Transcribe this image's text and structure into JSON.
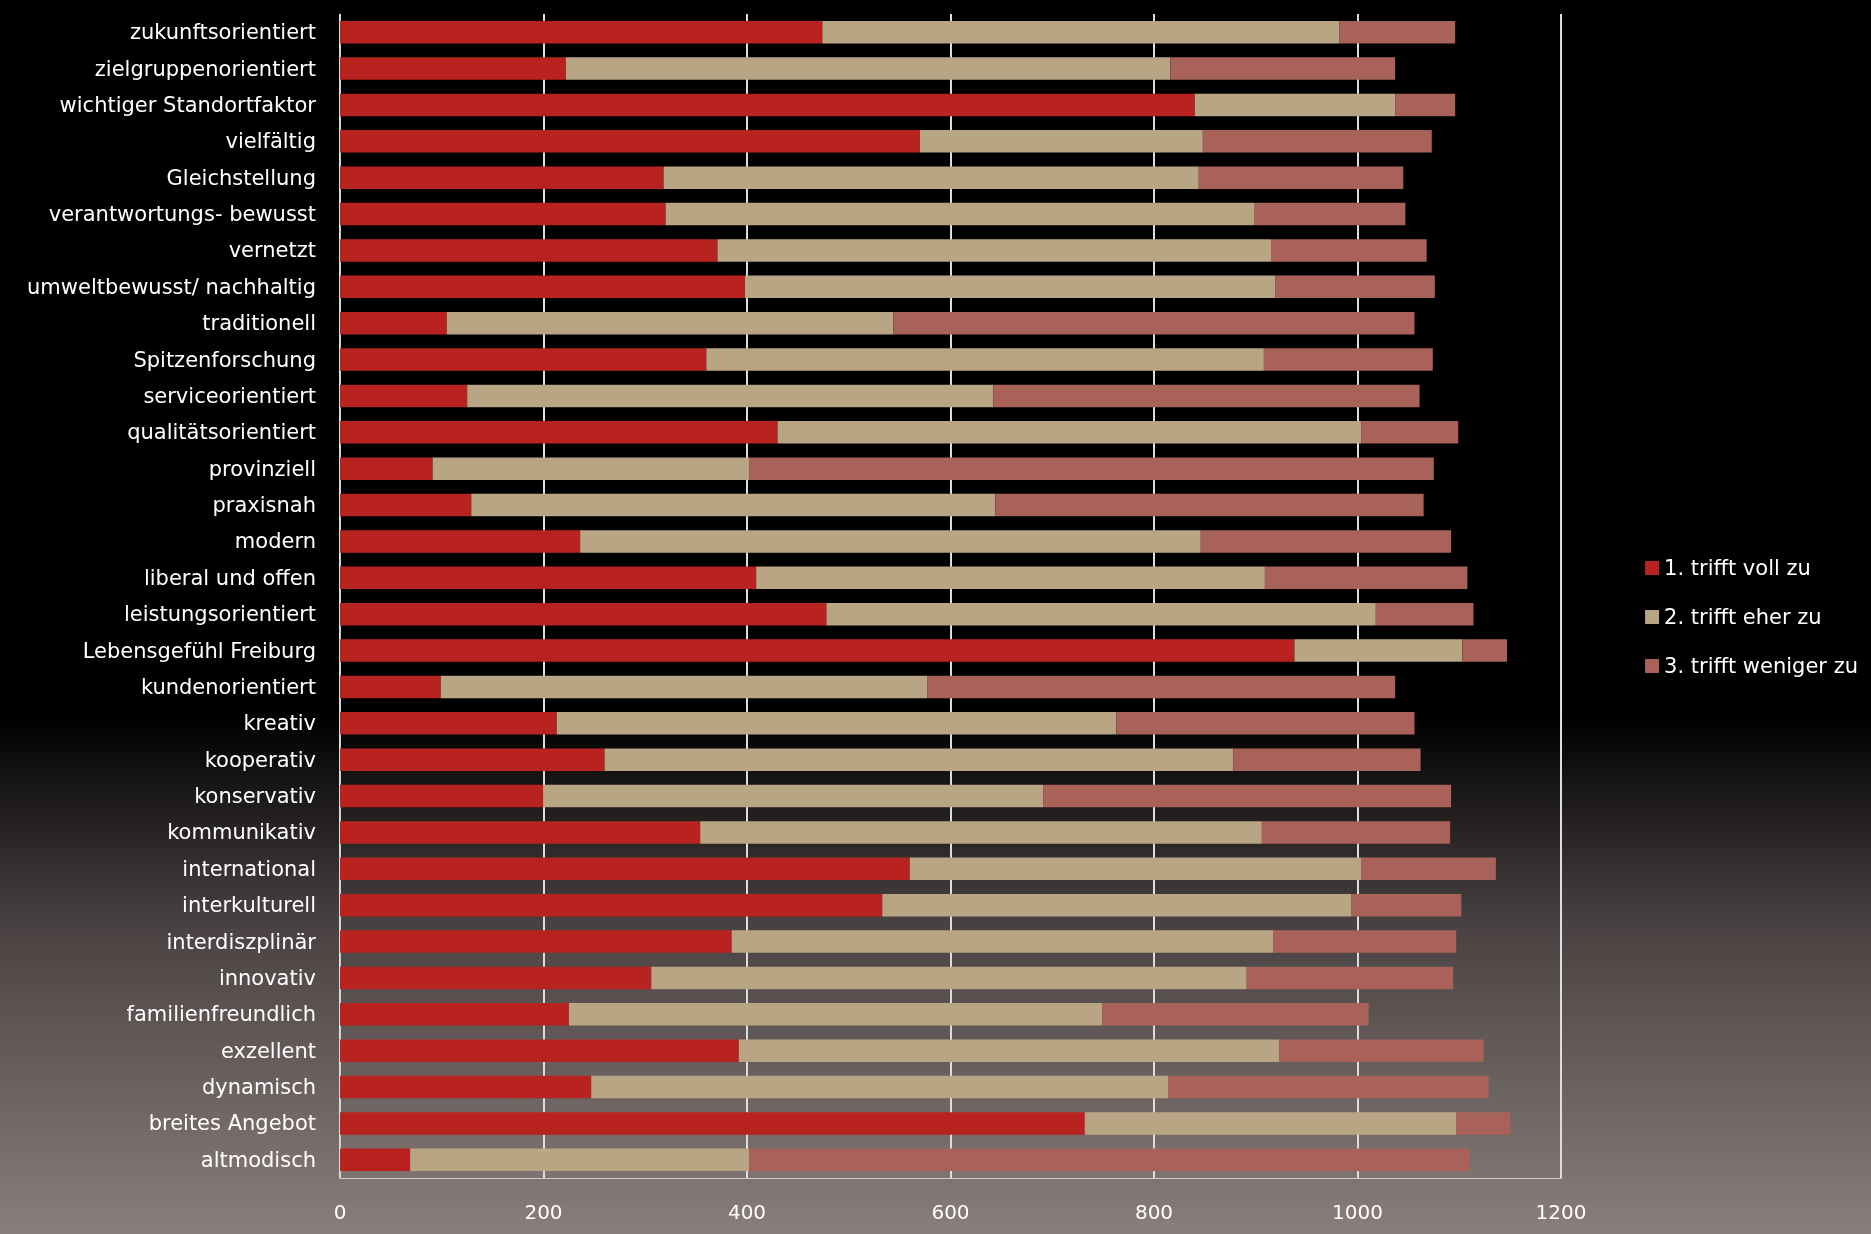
{
  "chart_data": {
    "type": "bar",
    "orientation": "horizontal",
    "stacked": true,
    "legend": "right",
    "grid": "x",
    "categories": [
      "zukunftsorientiert",
      "zielgruppenorientiert",
      "wichtiger Standortfaktor",
      "vielfältig",
      "Gleichstellung",
      "verantwortungs- bewusst",
      "vernetzt",
      "umweltbewusst/ nachhaltig",
      "traditionell",
      "Spitzenforschung",
      "serviceorientiert",
      "qualitätsorientiert",
      "provinziell",
      "praxisnah",
      "modern",
      "liberal und offen",
      "leistungsorientiert",
      "Lebensgefühl Freiburg",
      "kundenorientiert",
      "kreativ",
      "kooperativ",
      "konservativ",
      "kommunikativ",
      "international",
      "interkulturell",
      "interdiszplinär",
      "innovativ",
      "familienfreundlich",
      "exzellent",
      "dynamisch",
      "breites Angebot",
      "altmodisch"
    ],
    "xlim": [
      0,
      1200
    ],
    "xticks": [
      0,
      200,
      400,
      600,
      800,
      1000,
      1200
    ],
    "series": [
      {
        "name": "1. trifft voll zu",
        "color": "#b8231f",
        "values": [
          474,
          222,
          840,
          570,
          318,
          320,
          371,
          398,
          105,
          360,
          125,
          430,
          91,
          129,
          236,
          409,
          478,
          938,
          99,
          213,
          260,
          200,
          354,
          560,
          533,
          385,
          306,
          225,
          392,
          247,
          732,
          69
        ]
      },
      {
        "name": "2. trifft eher zu",
        "color": "#b8a584",
        "values": [
          508,
          594,
          197,
          278,
          526,
          579,
          544,
          521,
          439,
          548,
          517,
          574,
          311,
          515,
          610,
          500,
          540,
          165,
          478,
          550,
          618,
          491,
          552,
          444,
          461,
          532,
          585,
          524,
          531,
          567,
          365,
          333
        ]
      },
      {
        "name": "3. trifft weniger zu",
        "color": "#a8625a",
        "values": [
          114,
          221,
          59,
          225,
          201,
          148,
          153,
          157,
          512,
          166,
          419,
          95,
          673,
          421,
          246,
          199,
          96,
          44,
          460,
          293,
          184,
          401,
          185,
          132,
          108,
          180,
          203,
          262,
          201,
          315,
          53,
          708
        ]
      }
    ]
  }
}
